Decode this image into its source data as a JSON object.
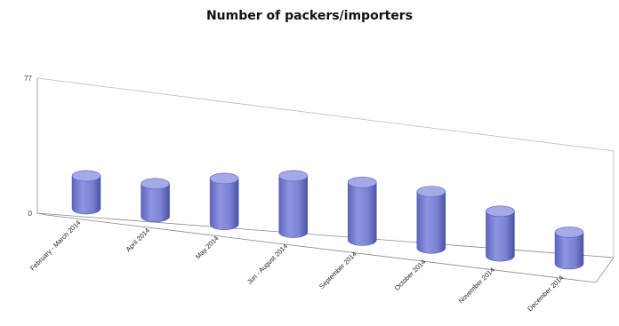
{
  "chart_data": {
    "type": "bar",
    "style": "3d-cylinder",
    "title": "Number of packers/importers",
    "xlabel": "",
    "ylabel": "",
    "ylim": [
      0,
      77
    ],
    "yticks": [
      0,
      77
    ],
    "grid": false,
    "legend": "none",
    "categories": [
      "February - March 2014",
      "April 2014",
      "May 2014",
      "Jun - August 2014",
      "September 2014",
      "October 2014",
      "November 2014",
      "December 2014"
    ],
    "values": [
      25,
      25,
      35,
      43,
      44,
      43,
      34,
      24
    ],
    "colors": {
      "bar": "#7b82d4",
      "bar_dark": "#5a61b5",
      "bar_top": "#a4a9e8",
      "axis": "#888888"
    }
  }
}
